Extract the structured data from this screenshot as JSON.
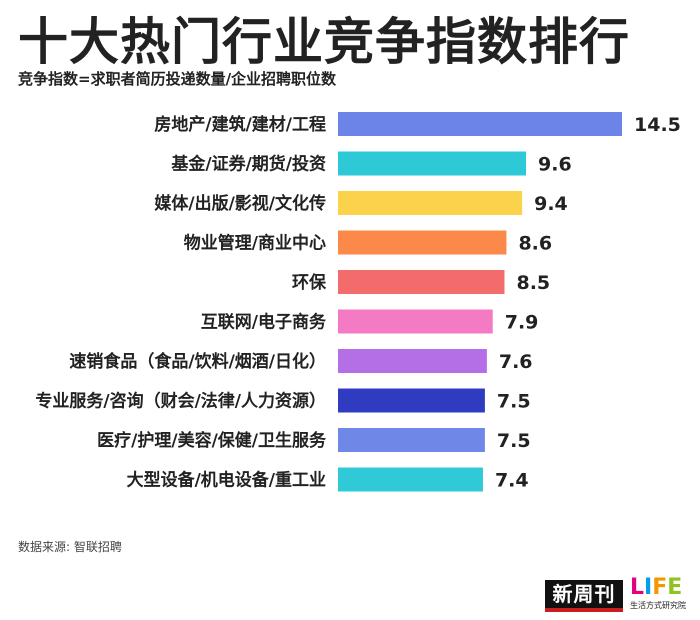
{
  "title": "十大热门行业竞争指数排行",
  "subtitle": "竞争指数=求职者简历投递数量/企业招聘职位数",
  "source": "数据来源: 智联招聘",
  "logos": {
    "left_text": "新周刊",
    "right_letters": [
      "L",
      "I",
      "F",
      "E"
    ],
    "right_sub": "生活方式研究院"
  },
  "chart_data": {
    "type": "bar",
    "orientation": "horizontal",
    "categories": [
      "房地产/建筑/建材/工程",
      "基金/证券/期货/投资",
      "媒体/出版/影视/文化传",
      "物业管理/商业中心",
      "环保",
      "互联网/电子商务",
      "速销食品（食品/饮料/烟酒/日化）",
      "专业服务/咨询（财会/法律/人力资源）",
      "医疗/护理/美容/保健/卫生服务",
      "大型设备/机电设备/重工业"
    ],
    "values": [
      14.5,
      9.6,
      9.4,
      8.6,
      8.5,
      7.9,
      7.6,
      7.5,
      7.5,
      7.4
    ],
    "value_labels": [
      "14.5",
      "9.6",
      "9.4",
      "8.6",
      "8.5",
      "7.9",
      "7.6",
      "7.5",
      "7.5",
      "7.4"
    ],
    "colors": [
      "#6c84e8",
      "#2ec9d6",
      "#fbd24c",
      "#fb8a4a",
      "#f36b6b",
      "#f47ac4",
      "#b46ee6",
      "#2f3bc0",
      "#6f88e8",
      "#2fc9d8"
    ],
    "xlim": [
      0,
      14.5
    ],
    "grid": false,
    "legend": "none"
  }
}
